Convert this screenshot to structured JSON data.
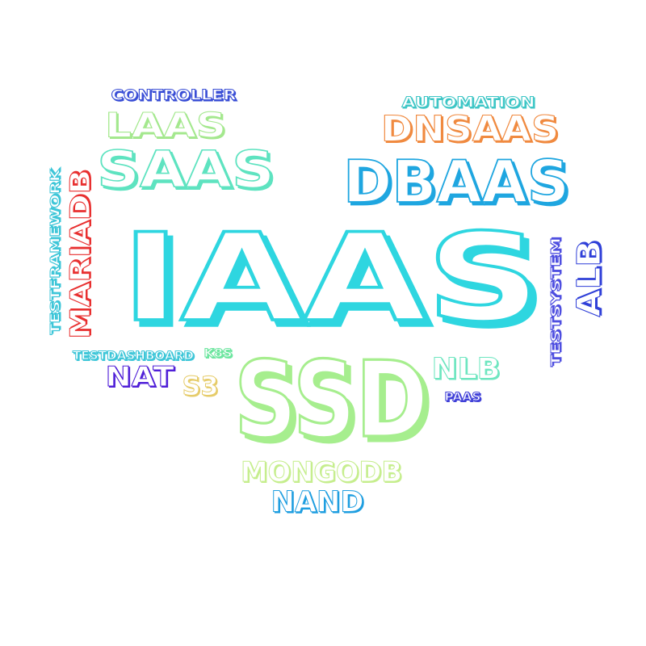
{
  "words": [
    {
      "text": "CONTROLLER",
      "color": "#3a4fd6"
    },
    {
      "text": "LAAS",
      "color": "#a4e88e"
    },
    {
      "text": "SAAS",
      "color": "#5ee3c0"
    },
    {
      "text": "AUTOMATION",
      "color": "#3ec6c6"
    },
    {
      "text": "DNSAAS",
      "color": "#f08a40"
    },
    {
      "text": "DBAAS",
      "color": "#1fa6e0"
    },
    {
      "text": "TESTFRAMEWORK",
      "color": "#3ec6d8"
    },
    {
      "text": "MARIADB",
      "color": "#e83030"
    },
    {
      "text": "IAAS",
      "color": "#2ed6e0"
    },
    {
      "text": "TESTSYSTEM",
      "color": "#4f4fe0"
    },
    {
      "text": "ALB",
      "color": "#3040d8"
    },
    {
      "text": "TESTDASHBOARD",
      "color": "#3ec6d8"
    },
    {
      "text": "K8S",
      "color": "#6ee6a0"
    },
    {
      "text": "NLB",
      "color": "#6ee6c0"
    },
    {
      "text": "NAT",
      "color": "#5020d8"
    },
    {
      "text": "S3",
      "color": "#e6cc6a"
    },
    {
      "text": "SSD",
      "color": "#a6ee8e"
    },
    {
      "text": "PAAS",
      "color": "#4040d8"
    },
    {
      "text": "MONGODB",
      "color": "#c6ee8e"
    },
    {
      "text": "NAND",
      "color": "#1f9ee0"
    }
  ]
}
